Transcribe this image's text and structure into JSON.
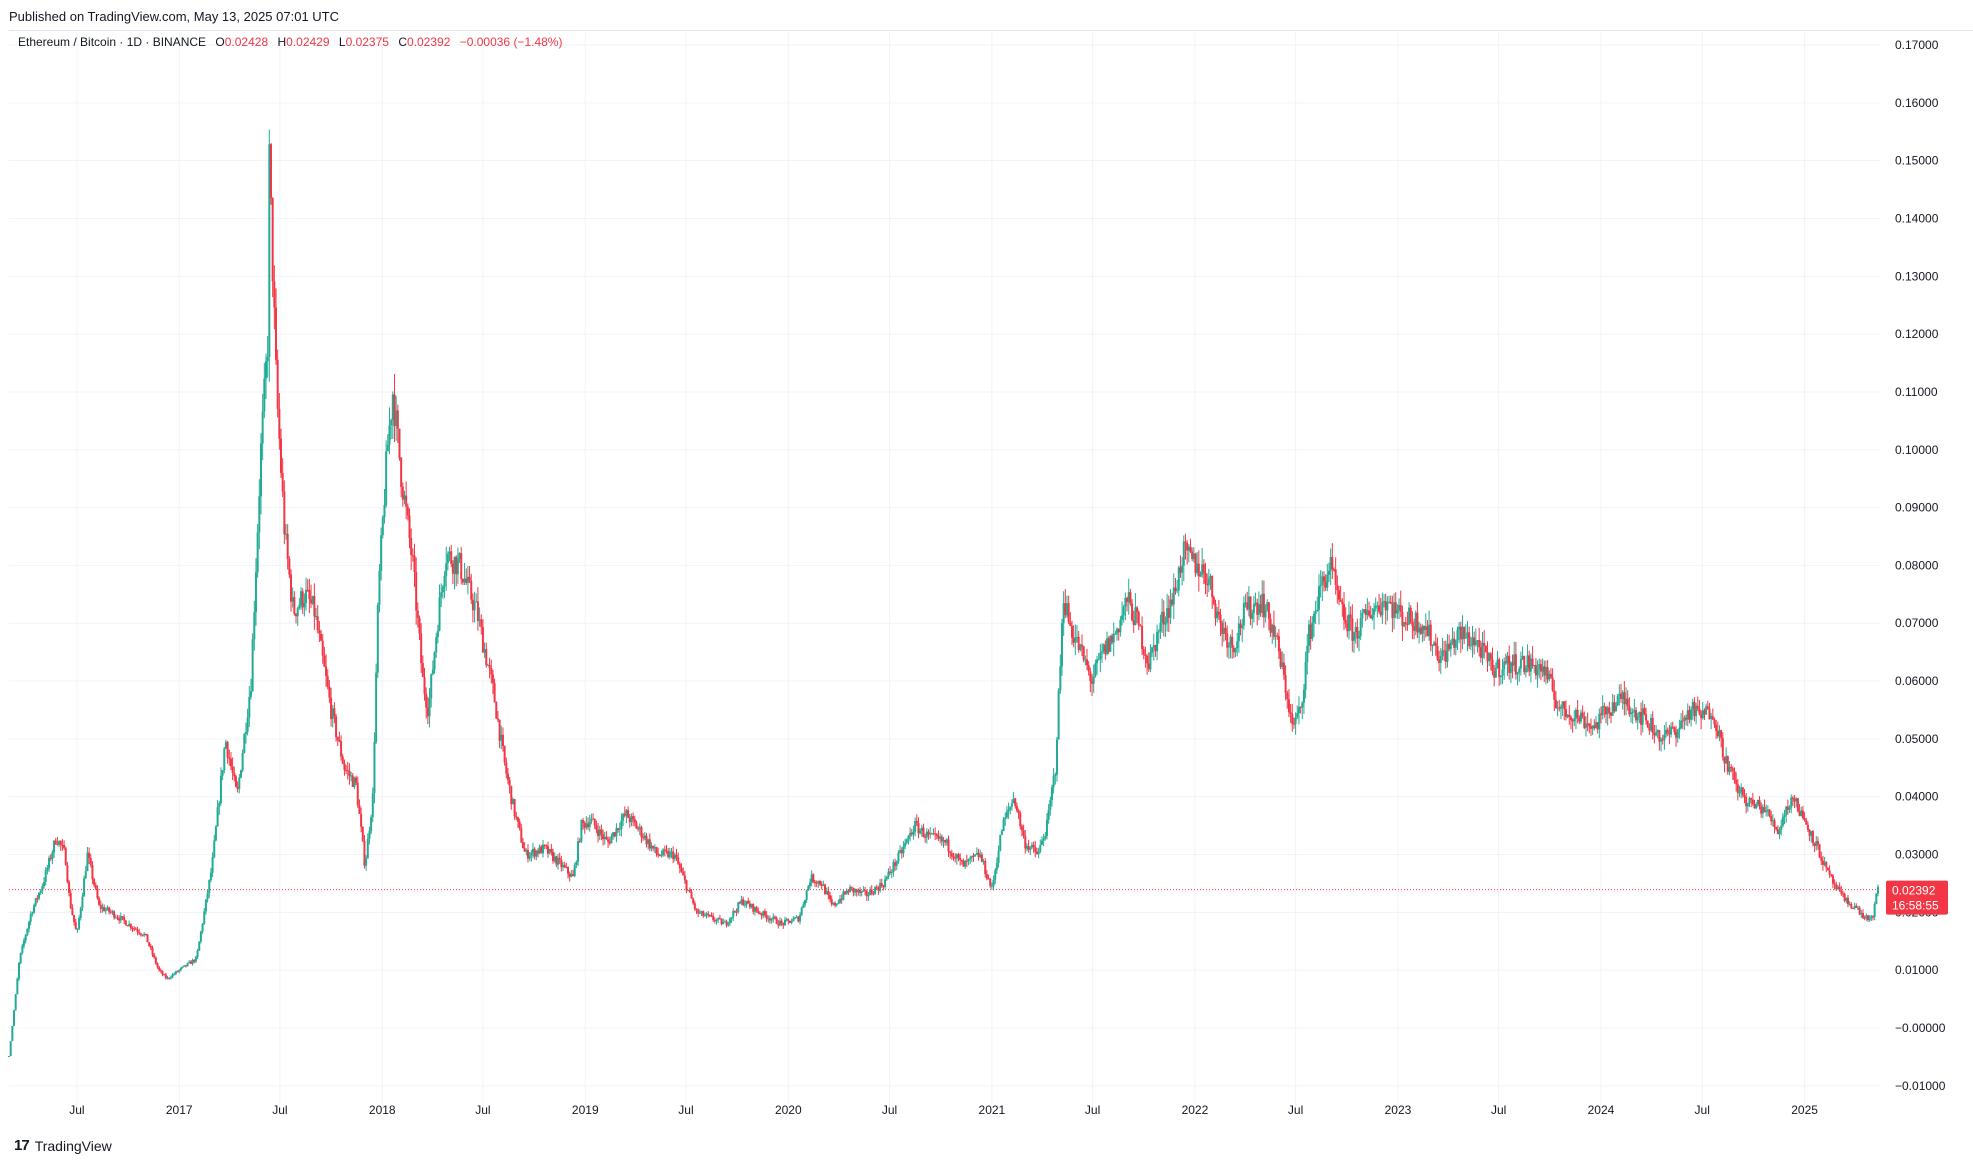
{
  "header": {
    "published": "Published on TradingView.com, May 13, 2025 07:01 UTC"
  },
  "legend": {
    "symbol": "Ethereum / Bitcoin · 1D · BINANCE",
    "o_label": "O",
    "o_value": "0.02428",
    "h_label": "H",
    "h_value": "0.02429",
    "l_label": "L",
    "l_value": "0.02375",
    "c_label": "C",
    "c_value": "0.02392",
    "change": "−0.00036 (−1.48%)"
  },
  "price_badge": {
    "price": "0.02392",
    "countdown": "16:58:55"
  },
  "footer": {
    "logo_icon": "tradingview-logo-icon",
    "brand": "TradingView"
  },
  "colors": {
    "up": "#22ab94",
    "down": "#f23645",
    "grid": "#f0f3fa",
    "text": "#131722"
  },
  "chart_data": {
    "type": "candlestick",
    "symbol": "ETH/BTC",
    "interval": "1D",
    "exchange": "BINANCE",
    "x_range": [
      "2016-03-01",
      "2025-05-13"
    ],
    "ylim": [
      -0.0125,
      0.1725
    ],
    "y_ticks": [
      0.17,
      0.16,
      0.15,
      0.14,
      0.13,
      0.12,
      0.11,
      0.1,
      0.09,
      0.08,
      0.07,
      0.06,
      0.05,
      0.04,
      0.03,
      0.02,
      0.01,
      -0.0,
      -0.01
    ],
    "y_tick_labels": [
      "0.17000",
      "0.16000",
      "0.15000",
      "0.14000",
      "0.13000",
      "0.12000",
      "0.11000",
      "0.10000",
      "0.09000",
      "0.08000",
      "0.07000",
      "0.06000",
      "0.05000",
      "0.04000",
      "0.03000",
      "0.02000",
      "0.01000",
      "−0.00000",
      "−0.01000"
    ],
    "x_ticks": [
      {
        "date": "2016-07-01",
        "label": "Jul"
      },
      {
        "date": "2017-01-01",
        "label": "2017"
      },
      {
        "date": "2017-07-01",
        "label": "Jul"
      },
      {
        "date": "2018-01-01",
        "label": "2018"
      },
      {
        "date": "2018-07-01",
        "label": "Jul"
      },
      {
        "date": "2019-01-01",
        "label": "2019"
      },
      {
        "date": "2019-07-01",
        "label": "Jul"
      },
      {
        "date": "2020-01-01",
        "label": "2020"
      },
      {
        "date": "2020-07-01",
        "label": "Jul"
      },
      {
        "date": "2021-01-01",
        "label": "2021"
      },
      {
        "date": "2021-07-01",
        "label": "Jul"
      },
      {
        "date": "2022-01-01",
        "label": "2022"
      },
      {
        "date": "2022-07-01",
        "label": "Jul"
      },
      {
        "date": "2023-01-01",
        "label": "2023"
      },
      {
        "date": "2023-07-01",
        "label": "Jul"
      },
      {
        "date": "2024-01-01",
        "label": "2024"
      },
      {
        "date": "2024-07-01",
        "label": "Jul"
      },
      {
        "date": "2025-01-01",
        "label": "2025"
      }
    ],
    "last_price": 0.02392,
    "series": [
      {
        "name": "ETH/BTC close (approx.)",
        "points": [
          [
            "2016-03-01",
            -0.005
          ],
          [
            "2016-03-20",
            0.012
          ],
          [
            "2016-04-10",
            0.02
          ],
          [
            "2016-05-01",
            0.025
          ],
          [
            "2016-05-25",
            0.033
          ],
          [
            "2016-06-10",
            0.03
          ],
          [
            "2016-06-18",
            0.022
          ],
          [
            "2016-07-01",
            0.016
          ],
          [
            "2016-07-20",
            0.03
          ],
          [
            "2016-08-10",
            0.021
          ],
          [
            "2016-09-01",
            0.02
          ],
          [
            "2016-10-01",
            0.018
          ],
          [
            "2016-11-01",
            0.016
          ],
          [
            "2016-11-25",
            0.01
          ],
          [
            "2016-12-10",
            0.0085
          ],
          [
            "2017-01-01",
            0.01
          ],
          [
            "2017-02-01",
            0.012
          ],
          [
            "2017-03-01",
            0.028
          ],
          [
            "2017-03-25",
            0.05
          ],
          [
            "2017-04-15",
            0.04
          ],
          [
            "2017-05-10",
            0.06
          ],
          [
            "2017-05-28",
            0.1
          ],
          [
            "2017-06-10",
            0.12
          ],
          [
            "2017-06-12",
            0.15
          ],
          [
            "2017-06-25",
            0.11
          ],
          [
            "2017-07-10",
            0.085
          ],
          [
            "2017-07-25",
            0.072
          ],
          [
            "2017-08-15",
            0.075
          ],
          [
            "2017-09-01",
            0.072
          ],
          [
            "2017-10-01",
            0.055
          ],
          [
            "2017-10-25",
            0.045
          ],
          [
            "2017-11-15",
            0.042
          ],
          [
            "2017-12-01",
            0.028
          ],
          [
            "2017-12-15",
            0.04
          ],
          [
            "2017-12-25",
            0.075
          ],
          [
            "2018-01-10",
            0.1
          ],
          [
            "2018-01-20",
            0.11
          ],
          [
            "2018-02-05",
            0.095
          ],
          [
            "2018-02-25",
            0.08
          ],
          [
            "2018-03-15",
            0.06
          ],
          [
            "2018-03-25",
            0.055
          ],
          [
            "2018-04-10",
            0.07
          ],
          [
            "2018-04-25",
            0.082
          ],
          [
            "2018-05-20",
            0.08
          ],
          [
            "2018-06-20",
            0.072
          ],
          [
            "2018-07-20",
            0.058
          ],
          [
            "2018-08-10",
            0.045
          ],
          [
            "2018-08-25",
            0.038
          ],
          [
            "2018-09-15",
            0.03
          ],
          [
            "2018-10-20",
            0.031
          ],
          [
            "2018-11-20",
            0.028
          ],
          [
            "2018-12-10",
            0.026
          ],
          [
            "2018-12-25",
            0.035
          ],
          [
            "2019-01-10",
            0.036
          ],
          [
            "2019-02-10",
            0.032
          ],
          [
            "2019-03-15",
            0.037
          ],
          [
            "2019-04-10",
            0.034
          ],
          [
            "2019-05-10",
            0.03
          ],
          [
            "2019-06-10",
            0.03
          ],
          [
            "2019-06-30",
            0.025
          ],
          [
            "2019-07-20",
            0.02
          ],
          [
            "2019-08-15",
            0.019
          ],
          [
            "2019-09-10",
            0.018
          ],
          [
            "2019-10-10",
            0.022
          ],
          [
            "2019-11-10",
            0.02
          ],
          [
            "2019-12-20",
            0.018
          ],
          [
            "2020-01-20",
            0.019
          ],
          [
            "2020-02-10",
            0.026
          ],
          [
            "2020-03-01",
            0.025
          ],
          [
            "2020-03-20",
            0.021
          ],
          [
            "2020-04-20",
            0.024
          ],
          [
            "2020-05-20",
            0.023
          ],
          [
            "2020-06-20",
            0.025
          ],
          [
            "2020-07-20",
            0.03
          ],
          [
            "2020-08-15",
            0.035
          ],
          [
            "2020-09-10",
            0.033
          ],
          [
            "2020-10-10",
            0.032
          ],
          [
            "2020-11-10",
            0.028
          ],
          [
            "2020-12-10",
            0.03
          ],
          [
            "2021-01-01",
            0.024
          ],
          [
            "2021-01-20",
            0.035
          ],
          [
            "2021-02-10",
            0.04
          ],
          [
            "2021-03-01",
            0.032
          ],
          [
            "2021-03-25",
            0.03
          ],
          [
            "2021-04-10",
            0.035
          ],
          [
            "2021-04-25",
            0.045
          ],
          [
            "2021-05-10",
            0.075
          ],
          [
            "2021-05-20",
            0.07
          ],
          [
            "2021-06-10",
            0.065
          ],
          [
            "2021-06-30",
            0.06
          ],
          [
            "2021-07-20",
            0.065
          ],
          [
            "2021-08-10",
            0.068
          ],
          [
            "2021-09-01",
            0.074
          ],
          [
            "2021-09-20",
            0.07
          ],
          [
            "2021-10-10",
            0.063
          ],
          [
            "2021-11-01",
            0.07
          ],
          [
            "2021-11-25",
            0.075
          ],
          [
            "2021-12-10",
            0.082
          ],
          [
            "2022-01-05",
            0.08
          ],
          [
            "2022-01-25",
            0.078
          ],
          [
            "2022-02-15",
            0.07
          ],
          [
            "2022-03-10",
            0.066
          ],
          [
            "2022-04-01",
            0.072
          ],
          [
            "2022-05-01",
            0.074
          ],
          [
            "2022-05-25",
            0.068
          ],
          [
            "2022-06-15",
            0.058
          ],
          [
            "2022-06-25",
            0.052
          ],
          [
            "2022-07-10",
            0.055
          ],
          [
            "2022-07-25",
            0.068
          ],
          [
            "2022-08-15",
            0.076
          ],
          [
            "2022-09-01",
            0.08
          ],
          [
            "2022-09-20",
            0.072
          ],
          [
            "2022-10-15",
            0.068
          ],
          [
            "2022-11-10",
            0.072
          ],
          [
            "2022-12-10",
            0.074
          ],
          [
            "2023-01-10",
            0.071
          ],
          [
            "2023-02-15",
            0.07
          ],
          [
            "2023-03-20",
            0.064
          ],
          [
            "2023-04-20",
            0.068
          ],
          [
            "2023-05-20",
            0.067
          ],
          [
            "2023-06-20",
            0.062
          ],
          [
            "2023-07-20",
            0.063
          ],
          [
            "2023-08-20",
            0.063
          ],
          [
            "2023-09-20",
            0.062
          ],
          [
            "2023-10-20",
            0.055
          ],
          [
            "2023-11-20",
            0.054
          ],
          [
            "2023-12-20",
            0.052
          ],
          [
            "2024-01-10",
            0.055
          ],
          [
            "2024-02-10",
            0.057
          ],
          [
            "2024-03-01",
            0.055
          ],
          [
            "2024-03-25",
            0.053
          ],
          [
            "2024-04-20",
            0.05
          ],
          [
            "2024-05-20",
            0.052
          ],
          [
            "2024-06-10",
            0.055
          ],
          [
            "2024-06-30",
            0.054
          ],
          [
            "2024-07-20",
            0.055
          ],
          [
            "2024-08-10",
            0.047
          ],
          [
            "2024-08-30",
            0.042
          ],
          [
            "2024-09-20",
            0.039
          ],
          [
            "2024-10-20",
            0.038
          ],
          [
            "2024-11-15",
            0.034
          ],
          [
            "2024-11-25",
            0.037
          ],
          [
            "2024-12-10",
            0.04
          ],
          [
            "2025-01-01",
            0.036
          ],
          [
            "2025-01-25",
            0.031
          ],
          [
            "2025-02-10",
            0.027
          ],
          [
            "2025-02-28",
            0.024
          ],
          [
            "2025-03-15",
            0.022
          ],
          [
            "2025-04-01",
            0.021
          ],
          [
            "2025-04-20",
            0.019
          ],
          [
            "2025-05-05",
            0.019
          ],
          [
            "2025-05-08",
            0.022
          ],
          [
            "2025-05-13",
            0.0239
          ]
        ]
      }
    ]
  }
}
